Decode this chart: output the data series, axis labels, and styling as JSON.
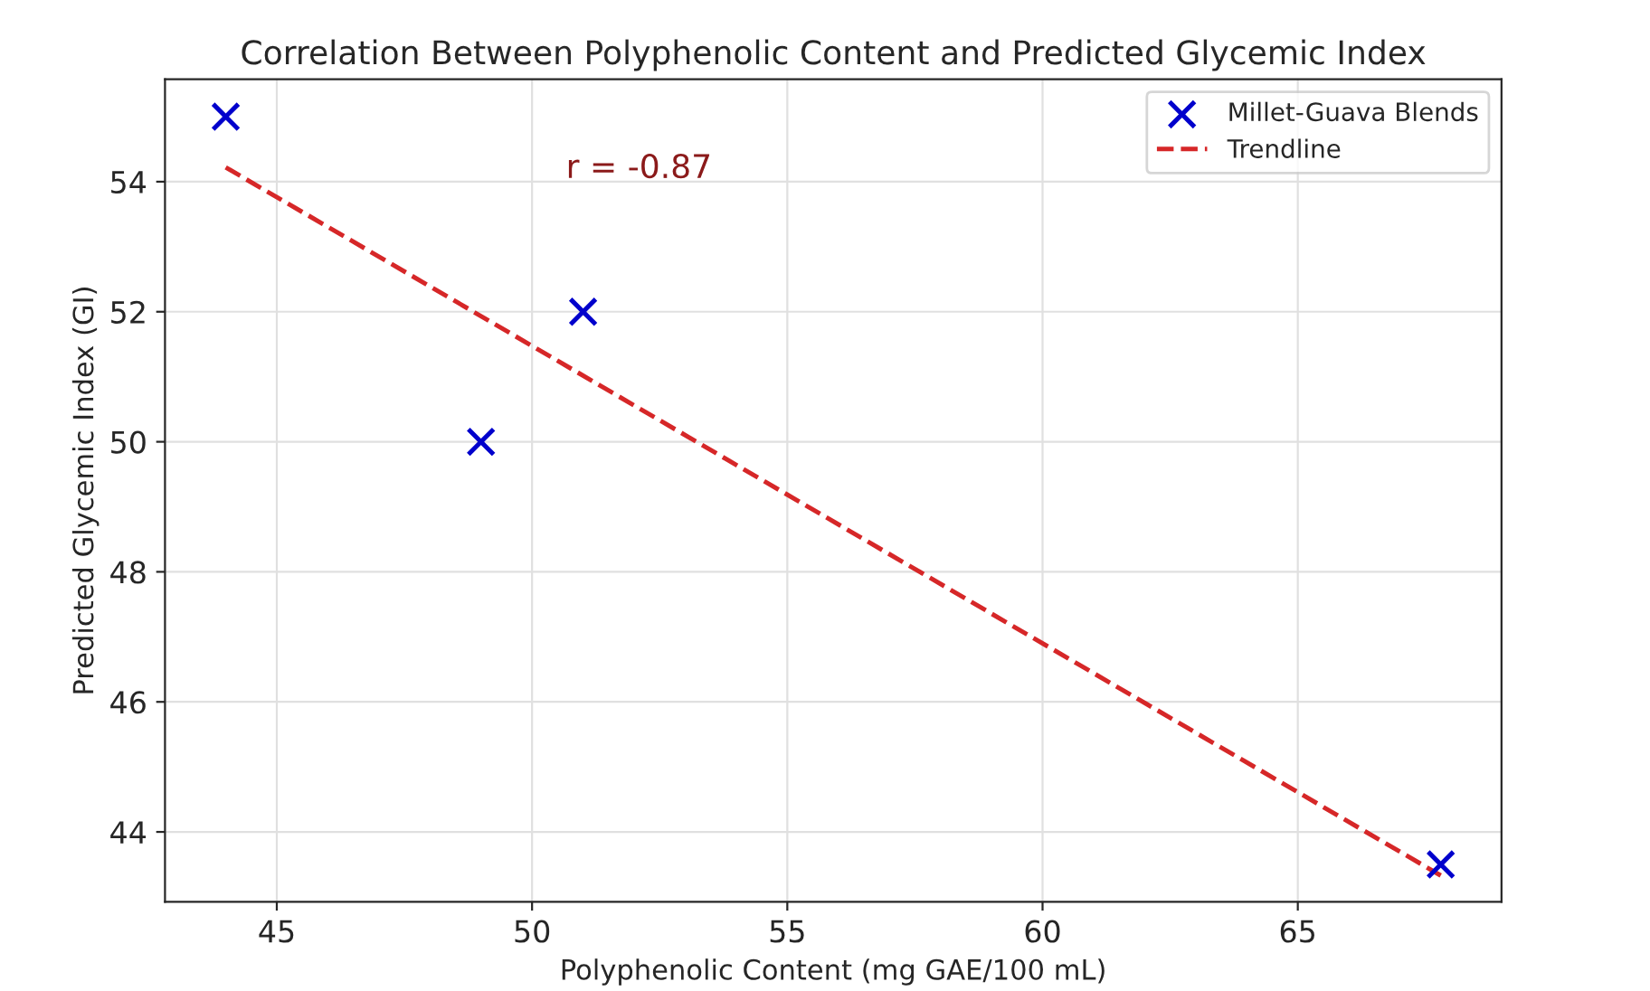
{
  "chart_data": {
    "type": "scatter",
    "title": "Correlation Between Polyphenolic Content and Predicted Glycemic Index",
    "xlabel": "Polyphenolic Content (mg GAE/100 mL)",
    "ylabel": "Predicted Glycemic Index (GI)",
    "series": [
      {
        "name": "Millet-Guava Blends",
        "color": "#0000cc",
        "marker": "cross",
        "x": [
          44,
          49,
          51,
          67.8
        ],
        "values": [
          55,
          50,
          52,
          43.5
        ]
      },
      {
        "name": "Trendline",
        "type": "line",
        "color": "#d62728",
        "line_style": "dashed",
        "marker": "none",
        "x": [
          44,
          67.8
        ],
        "values": [
          54.22,
          43.33
        ]
      }
    ],
    "annotations": [
      "r = -0.87"
    ],
    "xlim": [
      42.81,
      68.99
    ],
    "ylim": [
      42.925,
      55.575
    ],
    "xticks": [
      45,
      50,
      55,
      60,
      65
    ],
    "yticks": [
      44,
      46,
      48,
      50,
      52,
      54
    ],
    "grid": true,
    "legend": "top right"
  }
}
